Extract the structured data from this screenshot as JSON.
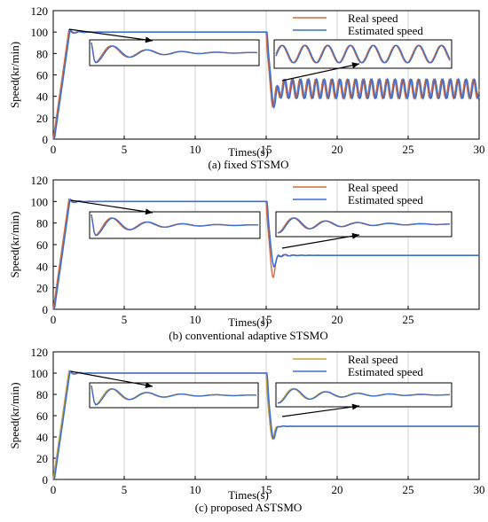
{
  "chart_data": [
    {
      "type": "line",
      "caption": "(a) fixed STSMO",
      "xlabel": "Times(s)",
      "ylabel": "Speed(kr/min)",
      "xlim": [
        0,
        30
      ],
      "ylim": [
        0,
        120
      ],
      "xticks": [
        "0",
        "5",
        "10",
        "15",
        "20",
        "25",
        "30"
      ],
      "yticks": [
        "0",
        "20",
        "40",
        "60",
        "80",
        "100",
        "120"
      ],
      "grid": "x-only",
      "legend_position": "top-right",
      "legend": [
        "Real speed",
        "Estimated speed"
      ],
      "series": [
        {
          "name": "Real speed",
          "color": "#d46a3c",
          "x": [
            0,
            0.3,
            0.6,
            0.9,
            1.1,
            1.5,
            2,
            3,
            5,
            10,
            14.9,
            15.1,
            15.3,
            15.5,
            15.8,
            16.2,
            17,
            20,
            25,
            30
          ],
          "y": [
            0,
            20,
            55,
            90,
            102,
            99,
            100,
            100,
            100,
            100,
            100,
            75,
            45,
            32,
            52,
            40,
            52,
            48,
            47,
            47
          ],
          "note": "sustained oscillation about 47 kr/min (amplitude ±9) after 15 s"
        },
        {
          "name": "Estimated speed",
          "color": "#3b6fd4",
          "x": [
            0,
            0.3,
            0.6,
            0.9,
            1.1,
            1.5,
            2,
            3,
            5,
            10,
            14.9,
            15.1,
            15.3,
            15.5,
            15.8,
            16.2,
            17,
            20,
            25,
            30
          ],
          "y": [
            0,
            20,
            55,
            90,
            102,
            99,
            100,
            100,
            100,
            100,
            100,
            75,
            45,
            32,
            52,
            40,
            52,
            48,
            47,
            47
          ]
        }
      ]
    },
    {
      "type": "line",
      "caption": "(b) conventional adaptive STSMO",
      "xlabel": "Times(s)",
      "ylabel": "Speed(kr/min)",
      "xlim": [
        0,
        30
      ],
      "ylim": [
        0,
        120
      ],
      "xticks": [
        "0",
        "5",
        "10",
        "15",
        "20",
        "25"
      ],
      "yticks": [
        "0",
        "20",
        "40",
        "60",
        "80",
        "100",
        "120"
      ],
      "grid": "x-only",
      "legend_position": "top-right",
      "legend": [
        "Real speed",
        "Estimated speed"
      ],
      "series": [
        {
          "name": "Real speed",
          "color": "#d46a3c",
          "x": [
            0,
            0.4,
            0.8,
            1.0,
            1.3,
            1.8,
            2.5,
            5,
            10,
            14.9,
            15.2,
            15.5,
            15.8,
            16.2,
            16.8,
            18,
            30
          ],
          "y": [
            0,
            10,
            60,
            95,
            104,
            101,
            100,
            100,
            100,
            100,
            70,
            30,
            55,
            45,
            52,
            50,
            50
          ]
        },
        {
          "name": "Estimated speed",
          "color": "#3b6fd4",
          "x": [
            0,
            0.4,
            0.8,
            1.0,
            1.3,
            1.8,
            2.5,
            5,
            10,
            14.9,
            15.2,
            15.5,
            15.8,
            16.2,
            16.8,
            18,
            30
          ],
          "y": [
            0,
            8,
            55,
            90,
            100,
            101,
            100,
            100,
            100,
            100,
            72,
            40,
            55,
            47,
            51,
            50,
            50
          ]
        }
      ]
    },
    {
      "type": "line",
      "caption": "(c) proposed ASTSMO",
      "xlabel": "Times(s)",
      "ylabel": "Speed(kr/min)",
      "xlim": [
        0,
        30
      ],
      "ylim": [
        0,
        120
      ],
      "xticks": [
        "0",
        "5",
        "10",
        "15",
        "20",
        "25",
        "30"
      ],
      "yticks": [
        "0",
        "20",
        "40",
        "60",
        "80",
        "100",
        "120"
      ],
      "grid": "x-only",
      "legend_position": "top-right",
      "legend": [
        "Real speed",
        "Estimated speed"
      ],
      "series": [
        {
          "name": "Real speed",
          "color": "#c9a23c",
          "x": [
            0,
            0.4,
            0.8,
            1.0,
            1.2,
            1.6,
            2.2,
            5,
            10,
            14.9,
            15.2,
            15.5,
            15.8,
            16.2,
            17,
            30
          ],
          "y": [
            0,
            10,
            60,
            95,
            101,
            100,
            100,
            100,
            100,
            100,
            70,
            40,
            55,
            48,
            50,
            50
          ]
        },
        {
          "name": "Estimated speed",
          "color": "#3b6fd4",
          "x": [
            0,
            0.4,
            0.8,
            1.0,
            1.2,
            1.6,
            2.2,
            5,
            10,
            14.9,
            15.2,
            15.5,
            15.8,
            16.2,
            17,
            30
          ],
          "y": [
            0,
            10,
            60,
            95,
            101,
            100,
            100,
            100,
            100,
            100,
            70,
            40,
            55,
            48,
            50,
            50
          ]
        }
      ]
    }
  ]
}
